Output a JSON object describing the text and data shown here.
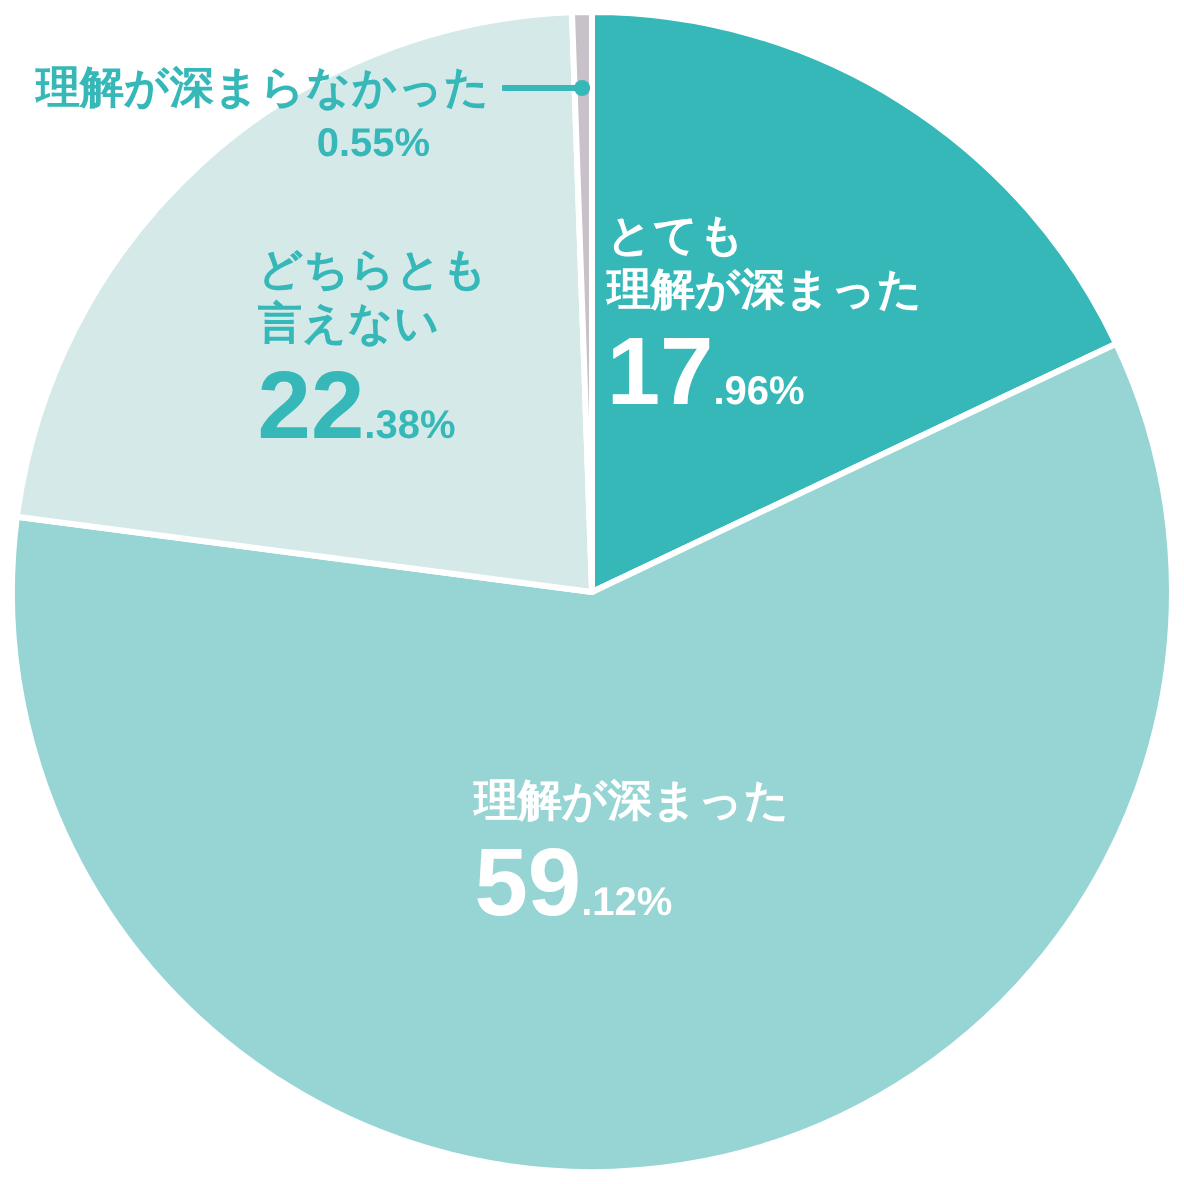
{
  "chart_data": {
    "type": "pie",
    "categories": [
      "とても理解が深まった",
      "理解が深まった",
      "どちらとも言えない",
      "理解が深まらなかった"
    ],
    "values": [
      17.96,
      59.12,
      22.38,
      0.55
    ],
    "colors": [
      "#36b8b8",
      "#97d5d5",
      "#d5e9e9",
      "#c9c1c9"
    ],
    "value_labels": [
      "17.96%",
      "59.12%",
      "22.38%",
      "0.55%"
    ],
    "legend": false
  }
}
